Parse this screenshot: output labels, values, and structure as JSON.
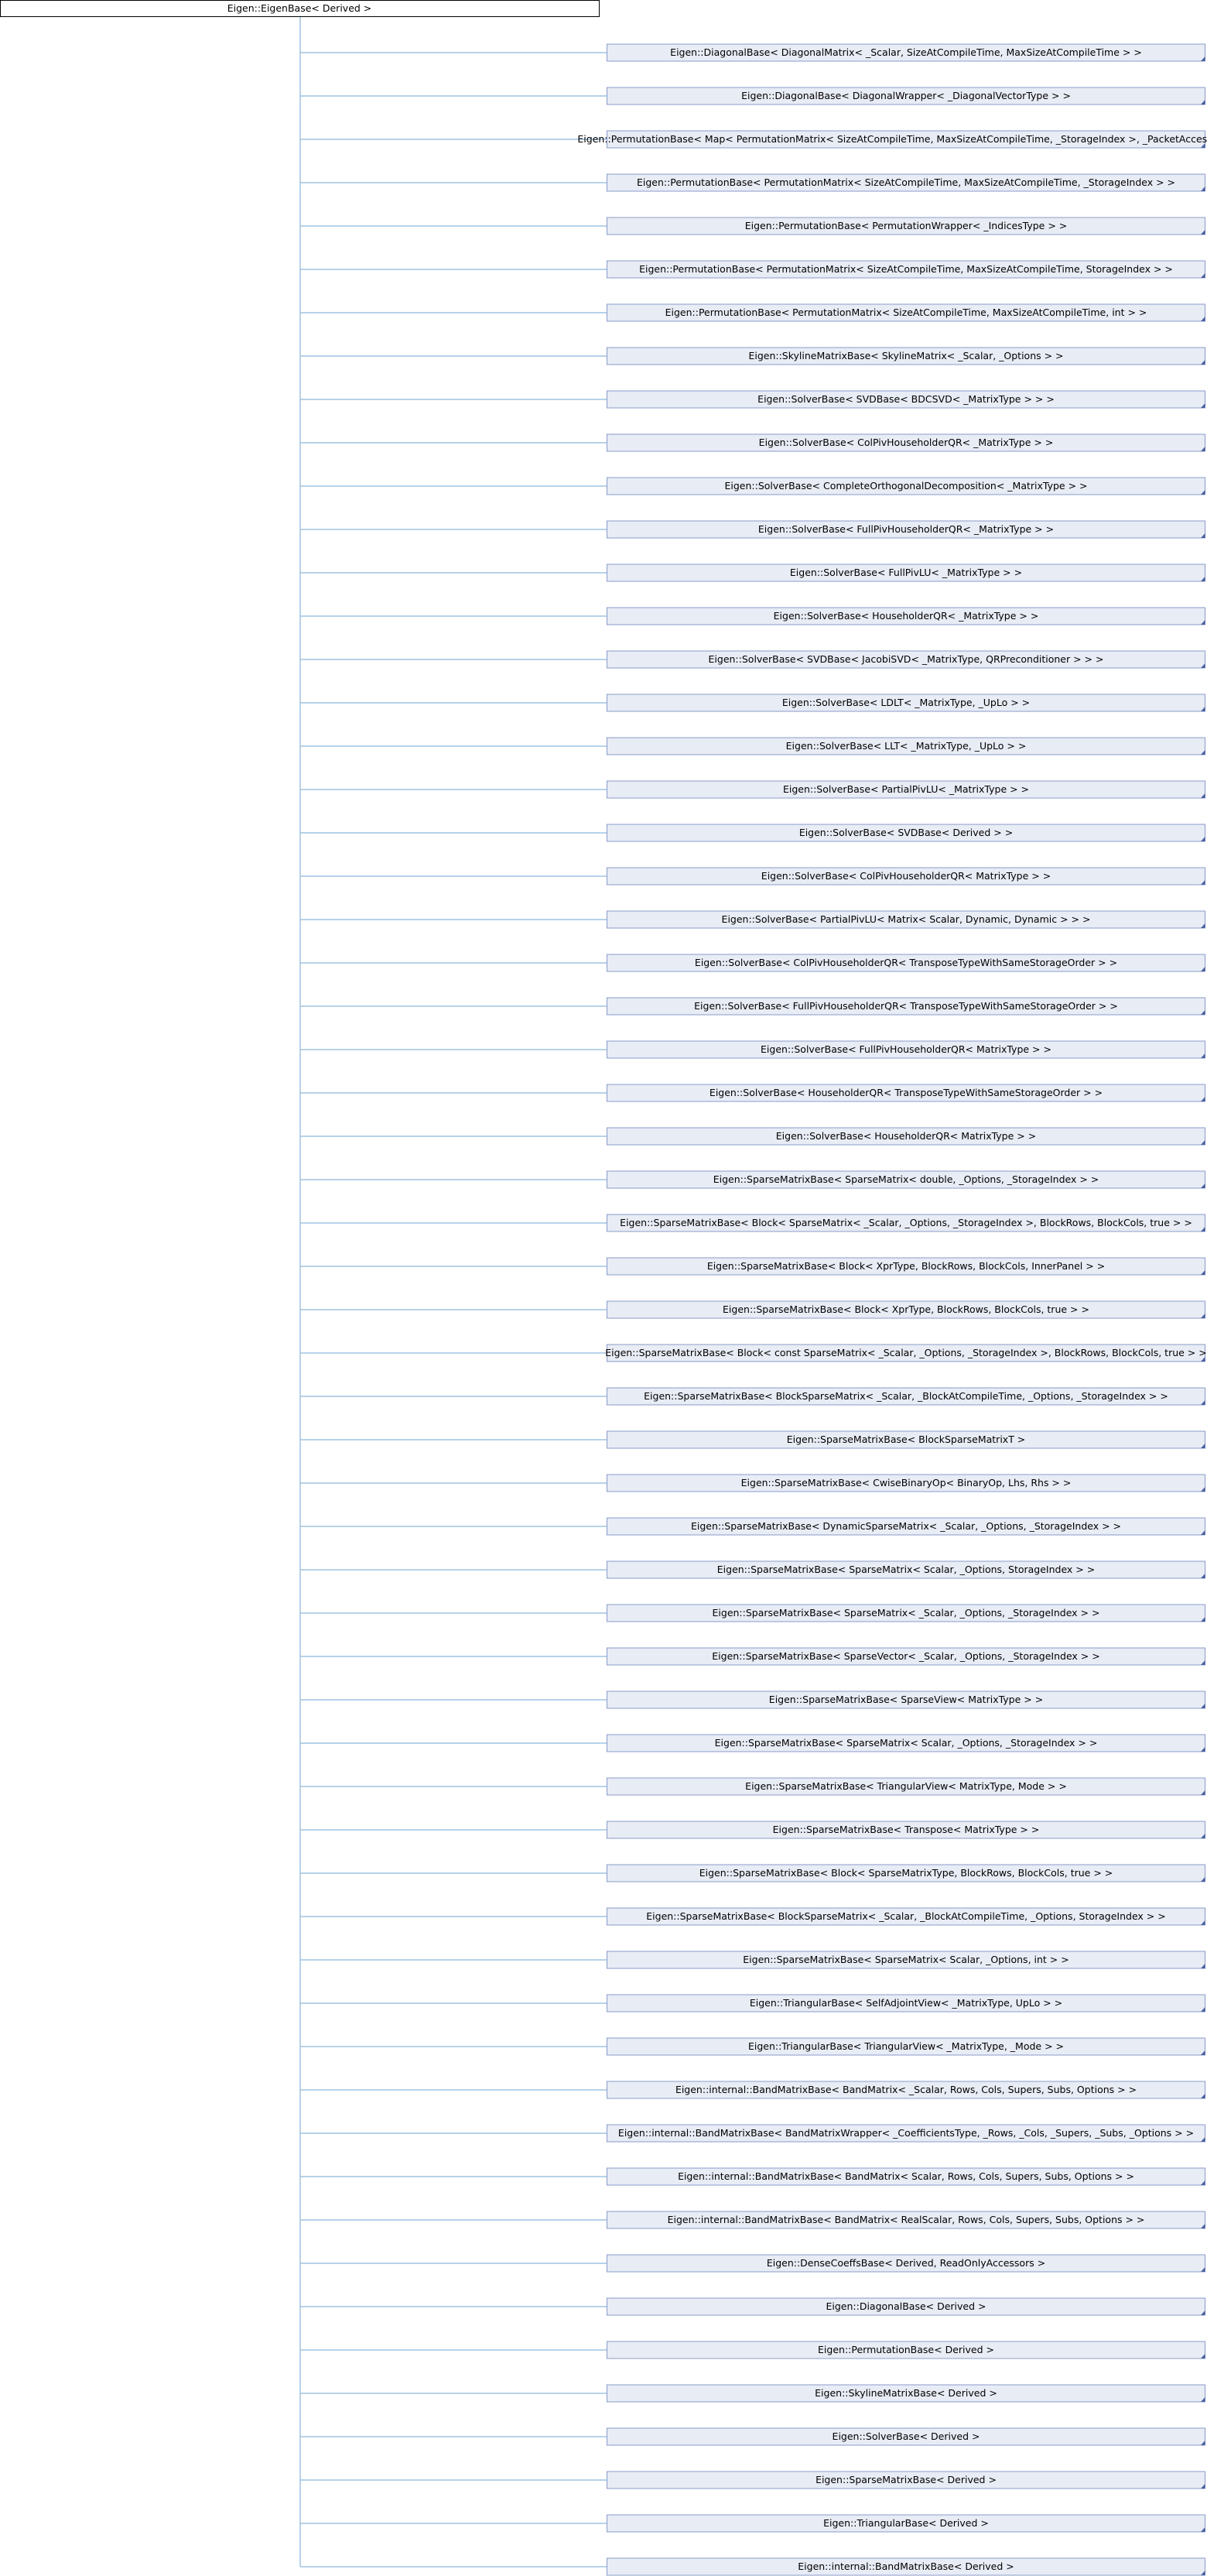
{
  "root": {
    "label": "Eigen::EigenBase< Derived >"
  },
  "nodes": [
    {
      "label": "Eigen::DiagonalBase< DiagonalMatrix< _Scalar, SizeAtCompileTime, MaxSizeAtCompileTime > >"
    },
    {
      "label": "Eigen::DiagonalBase< DiagonalWrapper< _DiagonalVectorType > >"
    },
    {
      "label": "Eigen::PermutationBase< Map< PermutationMatrix< SizeAtCompileTime, MaxSizeAtCompileTime, _StorageIndex >, _PacketAccess > >"
    },
    {
      "label": "Eigen::PermutationBase< PermutationMatrix< SizeAtCompileTime, MaxSizeAtCompileTime, _StorageIndex > >"
    },
    {
      "label": "Eigen::PermutationBase< PermutationWrapper< _IndicesType > >"
    },
    {
      "label": "Eigen::PermutationBase< PermutationMatrix< SizeAtCompileTime, MaxSizeAtCompileTime, StorageIndex > >"
    },
    {
      "label": "Eigen::PermutationBase< PermutationMatrix< SizeAtCompileTime, MaxSizeAtCompileTime, int > >"
    },
    {
      "label": "Eigen::SkylineMatrixBase< SkylineMatrix< _Scalar, _Options > >"
    },
    {
      "label": "Eigen::SolverBase< SVDBase< BDCSVD< _MatrixType > > >"
    },
    {
      "label": "Eigen::SolverBase< ColPivHouseholderQR< _MatrixType > >"
    },
    {
      "label": "Eigen::SolverBase< CompleteOrthogonalDecomposition< _MatrixType > >"
    },
    {
      "label": "Eigen::SolverBase< FullPivHouseholderQR< _MatrixType > >"
    },
    {
      "label": "Eigen::SolverBase< FullPivLU< _MatrixType > >"
    },
    {
      "label": "Eigen::SolverBase< HouseholderQR< _MatrixType > >"
    },
    {
      "label": "Eigen::SolverBase< SVDBase< JacobiSVD< _MatrixType, QRPreconditioner > > >"
    },
    {
      "label": "Eigen::SolverBase< LDLT< _MatrixType, _UpLo > >"
    },
    {
      "label": "Eigen::SolverBase< LLT< _MatrixType, _UpLo > >"
    },
    {
      "label": "Eigen::SolverBase< PartialPivLU< _MatrixType > >"
    },
    {
      "label": "Eigen::SolverBase< SVDBase< Derived > >"
    },
    {
      "label": "Eigen::SolverBase< ColPivHouseholderQR< MatrixType > >"
    },
    {
      "label": "Eigen::SolverBase< PartialPivLU< Matrix< Scalar, Dynamic, Dynamic > > >"
    },
    {
      "label": "Eigen::SolverBase< ColPivHouseholderQR< TransposeTypeWithSameStorageOrder > >"
    },
    {
      "label": "Eigen::SolverBase< FullPivHouseholderQR< TransposeTypeWithSameStorageOrder > >"
    },
    {
      "label": "Eigen::SolverBase< FullPivHouseholderQR< MatrixType > >"
    },
    {
      "label": "Eigen::SolverBase< HouseholderQR< TransposeTypeWithSameStorageOrder > >"
    },
    {
      "label": "Eigen::SolverBase< HouseholderQR< MatrixType > >"
    },
    {
      "label": "Eigen::SparseMatrixBase< SparseMatrix< double, _Options, _StorageIndex > >"
    },
    {
      "label": "Eigen::SparseMatrixBase< Block< SparseMatrix< _Scalar, _Options, _StorageIndex >, BlockRows, BlockCols, true > >"
    },
    {
      "label": "Eigen::SparseMatrixBase< Block< XprType, BlockRows, BlockCols, InnerPanel > >"
    },
    {
      "label": "Eigen::SparseMatrixBase< Block< XprType, BlockRows, BlockCols, true > >"
    },
    {
      "label": "Eigen::SparseMatrixBase< Block< const SparseMatrix< _Scalar, _Options, _StorageIndex >, BlockRows, BlockCols, true > >"
    },
    {
      "label": "Eigen::SparseMatrixBase< BlockSparseMatrix< _Scalar, _BlockAtCompileTime, _Options, _StorageIndex > >"
    },
    {
      "label": "Eigen::SparseMatrixBase< BlockSparseMatrixT >"
    },
    {
      "label": "Eigen::SparseMatrixBase< CwiseBinaryOp< BinaryOp, Lhs, Rhs > >"
    },
    {
      "label": "Eigen::SparseMatrixBase< DynamicSparseMatrix< _Scalar, _Options, _StorageIndex > >"
    },
    {
      "label": "Eigen::SparseMatrixBase< SparseMatrix< Scalar, _Options, StorageIndex > >"
    },
    {
      "label": "Eigen::SparseMatrixBase< SparseMatrix< _Scalar, _Options, _StorageIndex > >"
    },
    {
      "label": "Eigen::SparseMatrixBase< SparseVector< _Scalar, _Options, _StorageIndex > >"
    },
    {
      "label": "Eigen::SparseMatrixBase< SparseView< MatrixType > >"
    },
    {
      "label": "Eigen::SparseMatrixBase< SparseMatrix< Scalar, _Options, _StorageIndex > >"
    },
    {
      "label": "Eigen::SparseMatrixBase< TriangularView< MatrixType, Mode > >"
    },
    {
      "label": "Eigen::SparseMatrixBase< Transpose< MatrixType > >"
    },
    {
      "label": "Eigen::SparseMatrixBase< Block< SparseMatrixType, BlockRows, BlockCols, true > >"
    },
    {
      "label": "Eigen::SparseMatrixBase< BlockSparseMatrix< _Scalar, _BlockAtCompileTime, _Options, StorageIndex > >"
    },
    {
      "label": "Eigen::SparseMatrixBase< SparseMatrix< Scalar, _Options, int > >"
    },
    {
      "label": "Eigen::TriangularBase< SelfAdjointView< _MatrixType, UpLo > >"
    },
    {
      "label": "Eigen::TriangularBase< TriangularView< _MatrixType, _Mode > >"
    },
    {
      "label": "Eigen::internal::BandMatrixBase< BandMatrix< _Scalar, Rows, Cols, Supers, Subs, Options > >"
    },
    {
      "label": "Eigen::internal::BandMatrixBase< BandMatrixWrapper< _CoefficientsType, _Rows, _Cols, _Supers, _Subs, _Options > >"
    },
    {
      "label": "Eigen::internal::BandMatrixBase< BandMatrix< Scalar, Rows, Cols, Supers, Subs, Options > >"
    },
    {
      "label": "Eigen::internal::BandMatrixBase< BandMatrix< RealScalar, Rows, Cols, Supers, Subs, Options > >"
    },
    {
      "label": "Eigen::DenseCoeffsBase< Derived, ReadOnlyAccessors >"
    },
    {
      "label": "Eigen::DiagonalBase< Derived >"
    },
    {
      "label": "Eigen::PermutationBase< Derived >"
    },
    {
      "label": "Eigen::SkylineMatrixBase< Derived >"
    },
    {
      "label": "Eigen::SolverBase< Derived >"
    },
    {
      "label": "Eigen::SparseMatrixBase< Derived >"
    },
    {
      "label": "Eigen::TriangularBase< Derived >"
    },
    {
      "label": "Eigen::internal::BandMatrixBase< Derived >"
    }
  ]
}
